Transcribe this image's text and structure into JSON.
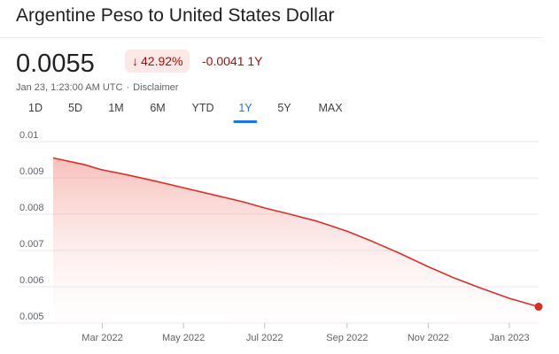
{
  "header": {
    "title": "Argentine Peso to United States Dollar",
    "price": "0.0055",
    "change_percent": "42.92%",
    "change_arrow": "↓",
    "change_abs": "-0.0041 1Y",
    "timestamp": "Jan 23, 1:23:00 AM UTC",
    "separator": "·",
    "disclaimer": "Disclaimer"
  },
  "tabs": [
    {
      "label": "1D"
    },
    {
      "label": "5D"
    },
    {
      "label": "1M"
    },
    {
      "label": "6M"
    },
    {
      "label": "YTD"
    },
    {
      "label": "1Y"
    },
    {
      "label": "5Y"
    },
    {
      "label": "MAX"
    }
  ],
  "active_tab": "1Y",
  "colors": {
    "line": "#d93025",
    "negative": "#a50e0e",
    "accent": "#1a73e8"
  },
  "chart_data": {
    "type": "area",
    "ylim": [
      0.005,
      0.01
    ],
    "xlim": [
      "2022-01-23",
      "2023-01-23"
    ],
    "grid": true,
    "y_ticks": [
      "0.01",
      "0.009",
      "0.008",
      "0.007",
      "0.006",
      "0.005"
    ],
    "x_ticks": [
      {
        "label": "Mar 2022",
        "date": "2022-03-01"
      },
      {
        "label": "May 2022",
        "date": "2022-05-01"
      },
      {
        "label": "Jul 2022",
        "date": "2022-07-01"
      },
      {
        "label": "Sep 2022",
        "date": "2022-09-01"
      },
      {
        "label": "Nov 2022",
        "date": "2022-11-01"
      },
      {
        "label": "Jan 2023",
        "date": "2023-01-01"
      }
    ],
    "series": [
      {
        "points": [
          [
            "2022-01-23",
            0.00955
          ],
          [
            "2022-02-15",
            0.00937
          ],
          [
            "2022-02-28",
            0.00923
          ],
          [
            "2022-03-20",
            0.00908
          ],
          [
            "2022-04-10",
            0.00891
          ],
          [
            "2022-05-01",
            0.00873
          ],
          [
            "2022-05-25",
            0.00852
          ],
          [
            "2022-06-15",
            0.00834
          ],
          [
            "2022-07-01",
            0.00817
          ],
          [
            "2022-07-20",
            0.008
          ],
          [
            "2022-08-10",
            0.0078
          ],
          [
            "2022-09-01",
            0.00753
          ],
          [
            "2022-09-20",
            0.00725
          ],
          [
            "2022-10-10",
            0.00693
          ],
          [
            "2022-11-01",
            0.00655
          ],
          [
            "2022-11-20",
            0.00625
          ],
          [
            "2022-12-10",
            0.00597
          ],
          [
            "2023-01-01",
            0.00568
          ],
          [
            "2023-01-23",
            0.00545
          ]
        ]
      }
    ]
  }
}
